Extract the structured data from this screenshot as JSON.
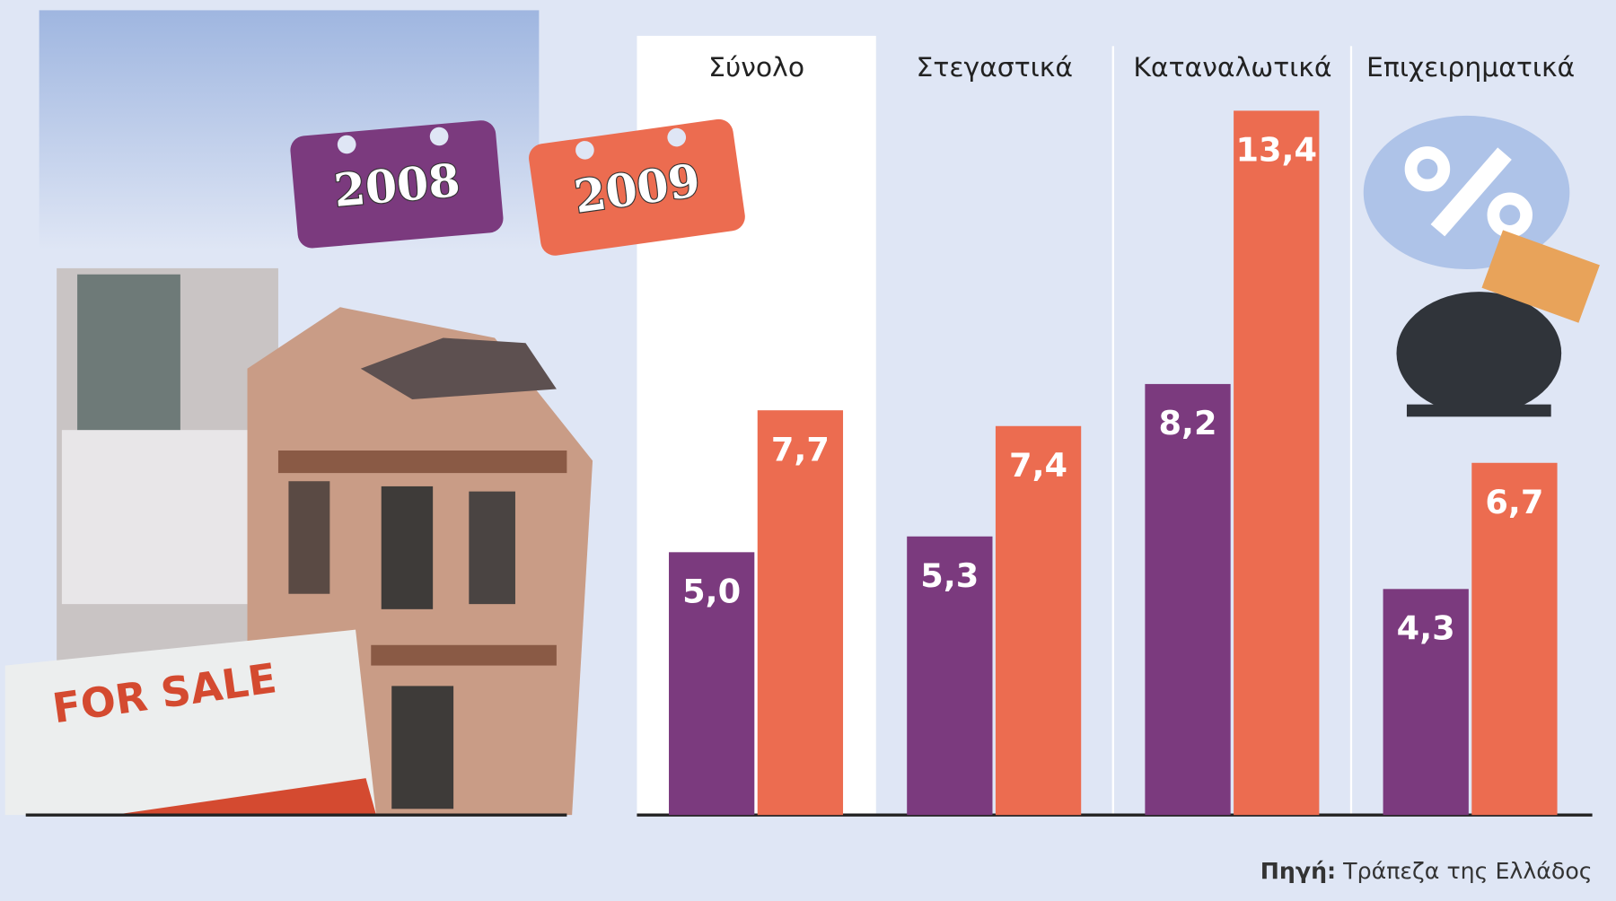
{
  "chart_data": {
    "type": "bar",
    "categories": [
      "Σύνολο",
      "Στεγαστικά",
      "Καταναλωτικά",
      "Επιχειρηματικά"
    ],
    "series": [
      {
        "name": "2008",
        "color": "#7b3a7e",
        "values": [
          5.0,
          5.3,
          8.2,
          4.3
        ],
        "value_labels": [
          "5,0",
          "5,3",
          "8,2",
          "4,3"
        ]
      },
      {
        "name": "2009",
        "color": "#ec6c50",
        "values": [
          7.7,
          7.4,
          13.4,
          6.7
        ],
        "value_labels": [
          "7,7",
          "7,4",
          "13,4",
          "6,7"
        ]
      }
    ],
    "ylim": [
      0,
      15
    ],
    "annotations": [
      "FOR SALE"
    ],
    "source_label": "Πηγή:",
    "source": "Τράπεζα της Ελλάδος"
  }
}
